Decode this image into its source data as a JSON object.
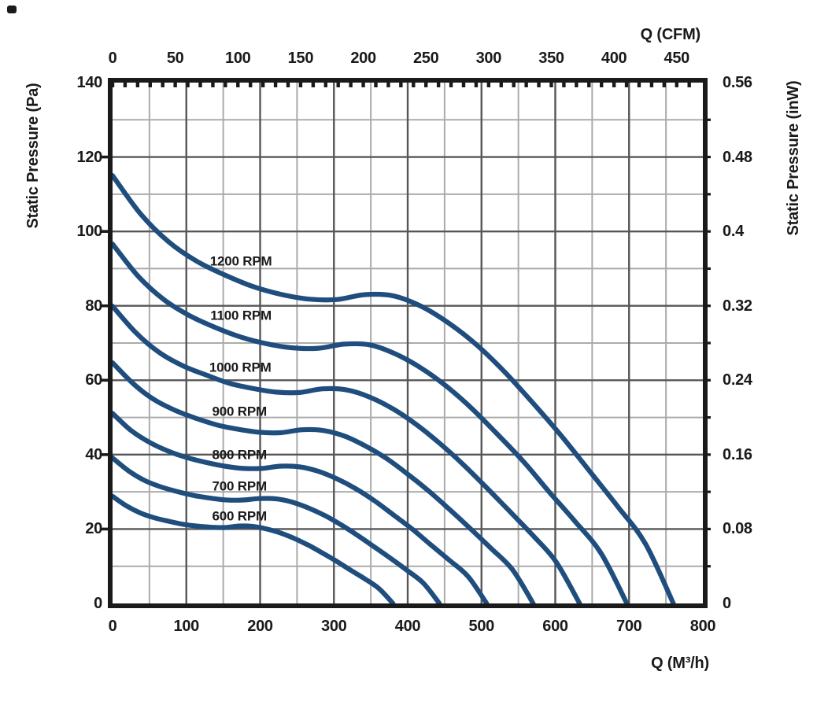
{
  "chart_data": {
    "type": "line",
    "title": "",
    "description": "Fan static pressure vs airflow performance curves at seven impeller speeds",
    "colors": {
      "curve": "#1f4e7e",
      "grid_major": "#575757",
      "grid_minor": "#ababab",
      "frame": "#1a1a1a",
      "text": "#1a1a1a",
      "background": "#ffffff"
    },
    "x_axis_bottom": {
      "title": "Q (M³/h)",
      "ticks": [
        0,
        100,
        200,
        300,
        400,
        500,
        600,
        700,
        800
      ],
      "range": [
        0,
        800
      ]
    },
    "x_axis_top": {
      "title": "Q (CFM)",
      "ticks": [
        0,
        50,
        100,
        150,
        200,
        250,
        300,
        350,
        400,
        450
      ],
      "range_cfm": [
        0,
        470.9
      ],
      "m3h_per_cfm": 1.699011,
      "minor_tick_step_cfm": 10
    },
    "y_axis_left": {
      "title": "Static Pressure (Pa)",
      "ticks": [
        140,
        120,
        100,
        80,
        60,
        40,
        20,
        0
      ],
      "range": [
        0,
        140
      ]
    },
    "y_axis_right": {
      "title": "Static Pressure (inW)",
      "ticks": [
        "0.56",
        "0.48",
        "0.4",
        "0.32",
        "0.24",
        "0.16",
        "0.08",
        "0"
      ],
      "at_pa": [
        140,
        120,
        100,
        80,
        60,
        40,
        20,
        0
      ],
      "minor_tick_step_pa": 10
    },
    "grid": {
      "x_major_step_m3h": 100,
      "x_minor_step_m3h": 50,
      "y_major_step_pa": 20,
      "y_minor_step_pa": 10
    },
    "series": [
      {
        "label": "600 RPM",
        "rpm": 600,
        "shutoff_pa": 28.8,
        "max_flow_m3h": 380,
        "label_anchor": {
          "q_m3h": 172,
          "pa": 23.5
        },
        "points": [
          [
            0,
            28.8
          ],
          [
            19,
            26.2
          ],
          [
            38,
            24.3
          ],
          [
            57,
            23.0
          ],
          [
            76,
            22.1
          ],
          [
            95,
            21.3
          ],
          [
            114,
            20.8
          ],
          [
            133,
            20.5
          ],
          [
            152,
            20.4
          ],
          [
            171,
            20.8
          ],
          [
            190,
            20.7
          ],
          [
            209,
            20.0
          ],
          [
            228,
            18.9
          ],
          [
            247,
            17.4
          ],
          [
            266,
            15.6
          ],
          [
            285,
            13.5
          ],
          [
            304,
            11.3
          ],
          [
            323,
            8.9
          ],
          [
            342,
            6.6
          ],
          [
            361,
            4.0
          ],
          [
            380,
            0
          ]
        ]
      },
      {
        "label": "700 RPM",
        "rpm": 700,
        "shutoff_pa": 39.1,
        "max_flow_m3h": 443,
        "label_anchor": {
          "q_m3h": 172,
          "pa": 31.5
        },
        "points": [
          [
            0,
            39.1
          ],
          [
            22,
            35.6
          ],
          [
            44,
            33.0
          ],
          [
            66,
            31.3
          ],
          [
            89,
            30.0
          ],
          [
            111,
            29.0
          ],
          [
            133,
            28.3
          ],
          [
            155,
            27.8
          ],
          [
            177,
            27.8
          ],
          [
            199,
            28.2
          ],
          [
            222,
            28.1
          ],
          [
            244,
            27.2
          ],
          [
            266,
            25.6
          ],
          [
            288,
            23.6
          ],
          [
            310,
            21.1
          ],
          [
            332,
            18.3
          ],
          [
            354,
            15.3
          ],
          [
            377,
            12.1
          ],
          [
            399,
            8.9
          ],
          [
            421,
            5.5
          ],
          [
            443,
            0
          ]
        ]
      },
      {
        "label": "800 RPM",
        "rpm": 800,
        "shutoff_pa": 51.1,
        "max_flow_m3h": 507,
        "label_anchor": {
          "q_m3h": 172,
          "pa": 40.0
        },
        "points": [
          [
            0,
            51.1
          ],
          [
            25,
            46.5
          ],
          [
            51,
            43.2
          ],
          [
            76,
            40.9
          ],
          [
            101,
            39.2
          ],
          [
            127,
            37.9
          ],
          [
            152,
            36.9
          ],
          [
            177,
            36.3
          ],
          [
            203,
            36.3
          ],
          [
            228,
            36.9
          ],
          [
            254,
            36.7
          ],
          [
            279,
            35.5
          ],
          [
            304,
            33.5
          ],
          [
            330,
            30.8
          ],
          [
            355,
            27.6
          ],
          [
            380,
            23.9
          ],
          [
            406,
            20.0
          ],
          [
            431,
            15.8
          ],
          [
            456,
            11.7
          ],
          [
            482,
            7.2
          ],
          [
            507,
            0
          ]
        ]
      },
      {
        "label": "900 RPM",
        "rpm": 900,
        "shutoff_pa": 64.7,
        "max_flow_m3h": 570,
        "label_anchor": {
          "q_m3h": 172,
          "pa": 51.5
        },
        "points": [
          [
            0,
            64.7
          ],
          [
            29,
            58.9
          ],
          [
            57,
            54.7
          ],
          [
            86,
            51.8
          ],
          [
            114,
            49.7
          ],
          [
            143,
            47.9
          ],
          [
            171,
            46.8
          ],
          [
            200,
            46.0
          ],
          [
            228,
            45.9
          ],
          [
            257,
            46.7
          ],
          [
            285,
            46.5
          ],
          [
            314,
            45.0
          ],
          [
            342,
            42.4
          ],
          [
            371,
            39.0
          ],
          [
            399,
            34.9
          ],
          [
            428,
            30.3
          ],
          [
            456,
            25.4
          ],
          [
            485,
            20.1
          ],
          [
            513,
            14.8
          ],
          [
            542,
            9.1
          ],
          [
            570,
            0
          ]
        ]
      },
      {
        "label": "1000 RPM",
        "rpm": 1000,
        "shutoff_pa": 79.9,
        "max_flow_m3h": 633,
        "label_anchor": {
          "q_m3h": 173,
          "pa": 63.5
        },
        "points": [
          [
            0,
            79.9
          ],
          [
            32,
            72.7
          ],
          [
            63,
            67.5
          ],
          [
            95,
            63.9
          ],
          [
            127,
            61.4
          ],
          [
            158,
            59.2
          ],
          [
            190,
            57.8
          ],
          [
            222,
            56.8
          ],
          [
            253,
            56.7
          ],
          [
            285,
            57.7
          ],
          [
            317,
            57.4
          ],
          [
            348,
            55.5
          ],
          [
            380,
            52.3
          ],
          [
            411,
            48.2
          ],
          [
            443,
            43.1
          ],
          [
            475,
            37.4
          ],
          [
            506,
            31.3
          ],
          [
            538,
            24.8
          ],
          [
            570,
            18.2
          ],
          [
            601,
            11.2
          ],
          [
            633,
            0
          ]
        ]
      },
      {
        "label": "1100 RPM",
        "rpm": 1100,
        "shutoff_pa": 96.6,
        "max_flow_m3h": 697,
        "label_anchor": {
          "q_m3h": 174,
          "pa": 77.5
        },
        "points": [
          [
            0,
            96.6
          ],
          [
            35,
            87.9
          ],
          [
            70,
            81.6
          ],
          [
            105,
            77.3
          ],
          [
            139,
            74.2
          ],
          [
            174,
            71.6
          ],
          [
            209,
            69.8
          ],
          [
            244,
            68.7
          ],
          [
            279,
            68.6
          ],
          [
            314,
            69.7
          ],
          [
            349,
            69.5
          ],
          [
            383,
            67.1
          ],
          [
            418,
            63.3
          ],
          [
            453,
            58.3
          ],
          [
            488,
            52.2
          ],
          [
            523,
            45.2
          ],
          [
            558,
            37.9
          ],
          [
            592,
            29.9
          ],
          [
            627,
            22.0
          ],
          [
            662,
            13.5
          ],
          [
            697,
            0
          ]
        ]
      },
      {
        "label": "1200 RPM",
        "rpm": 1200,
        "shutoff_pa": 115.0,
        "max_flow_m3h": 760,
        "label_anchor": {
          "q_m3h": 174,
          "pa": 92.0
        },
        "points": [
          [
            0,
            115.0
          ],
          [
            38,
            104.7
          ],
          [
            76,
            97.2
          ],
          [
            114,
            92.0
          ],
          [
            152,
            88.3
          ],
          [
            190,
            85.2
          ],
          [
            228,
            83.1
          ],
          [
            266,
            81.8
          ],
          [
            304,
            81.7
          ],
          [
            342,
            83.0
          ],
          [
            380,
            82.7
          ],
          [
            418,
            79.9
          ],
          [
            456,
            75.3
          ],
          [
            494,
            69.4
          ],
          [
            532,
            62.1
          ],
          [
            570,
            53.8
          ],
          [
            608,
            45.1
          ],
          [
            646,
            35.7
          ],
          [
            684,
            26.2
          ],
          [
            722,
            16.1
          ],
          [
            760,
            0
          ]
        ]
      }
    ]
  }
}
